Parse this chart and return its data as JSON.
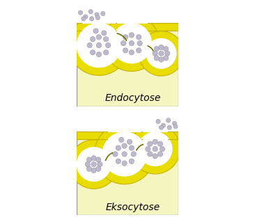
{
  "title_endo": "Endocytose",
  "title_ekso": "Eksocytose",
  "cell_color": "#f5f5c0",
  "outside_color": "#ffffff",
  "membrane_color": "#e8dc00",
  "membrane_edge": "#c8b000",
  "membrane_thick": 0.07,
  "particle_color": "#c0b8d0",
  "particle_edge": "#999999",
  "particle_r": 0.025,
  "arrow_color": "#707000",
  "border_color": "#999999",
  "font_size": 10
}
